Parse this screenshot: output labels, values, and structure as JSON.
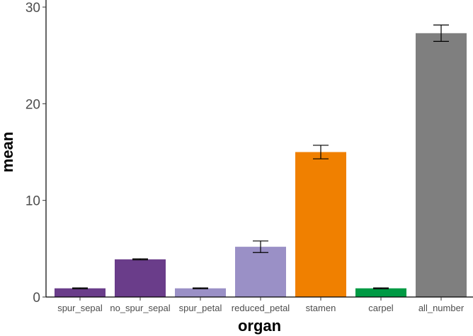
{
  "chart_data": {
    "type": "bar",
    "title": "",
    "xlabel": "organ",
    "ylabel": "mean",
    "categories": [
      "spur_sepal",
      "no_spur_sepal",
      "spur_petal",
      "reduced_petal",
      "stamen",
      "carpel",
      "all_number"
    ],
    "values": [
      0.9,
      3.9,
      0.9,
      5.2,
      15.0,
      0.9,
      27.3
    ],
    "error": [
      0.05,
      0.05,
      0.05,
      0.6,
      0.7,
      0.05,
      0.85
    ],
    "colors": [
      "#6a3d8a",
      "#6a3d8a",
      "#9a90c6",
      "#9a90c6",
      "#f08000",
      "#009a44",
      "#7f7f7f"
    ],
    "ylim": [
      0,
      30
    ],
    "yticks": [
      0,
      10,
      20,
      30
    ],
    "grid": false,
    "legend": "none"
  }
}
